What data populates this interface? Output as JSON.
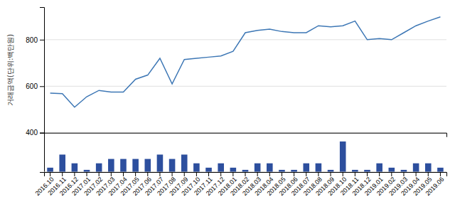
{
  "chart_data": [
    {
      "type": "line",
      "categories": [
        "2016.10",
        "2016.11",
        "2016.12",
        "2017.01",
        "2017.02",
        "2017.03",
        "2017.04",
        "2017.05",
        "2017.06",
        "2017.07",
        "2017.08",
        "2017.09",
        "2017.10",
        "2017.11",
        "2017.12",
        "2018.01",
        "2018.02",
        "2018.03",
        "2018.04",
        "2018.05",
        "2018.06",
        "2018.07",
        "2018.08",
        "2018.09",
        "2018.10",
        "2018.11",
        "2018.12",
        "2019.01",
        "2019.02",
        "2019.03",
        "2019.04",
        "2019.05",
        "2019.06"
      ],
      "values": [
        570,
        568,
        510,
        555,
        582,
        575,
        575,
        630,
        648,
        720,
        610,
        715,
        720,
        725,
        730,
        750,
        830,
        840,
        845,
        835,
        830,
        830,
        860,
        855,
        860,
        880,
        800,
        805,
        800,
        830,
        860,
        880,
        898
      ],
      "color": "#3d77b5",
      "ylabel": "거래금액(단위:백만원)",
      "ylim": [
        400,
        940
      ],
      "yticks": [
        400,
        600,
        800
      ],
      "grid": true,
      "tick_labels": "y"
    },
    {
      "type": "bar",
      "categories": [
        "2016.10",
        "2016.11",
        "2016.12",
        "2017.01",
        "2017.02",
        "2017.03",
        "2017.04",
        "2017.05",
        "2017.06",
        "2017.07",
        "2017.08",
        "2017.09",
        "2017.10",
        "2017.11",
        "2017.12",
        "2018.01",
        "2018.02",
        "2018.03",
        "2018.04",
        "2018.05",
        "2018.06",
        "2018.07",
        "2018.08",
        "2018.09",
        "2018.10",
        "2018.11",
        "2018.12",
        "2019.01",
        "2019.02",
        "2019.03",
        "2019.04",
        "2019.05",
        "2019.06"
      ],
      "values": [
        1,
        4,
        2,
        0.5,
        2,
        3,
        3,
        3,
        3,
        4,
        3,
        4,
        2,
        1,
        2,
        1,
        0.5,
        2,
        2,
        0.5,
        0.5,
        2,
        2,
        0.5,
        7,
        0.5,
        0.5,
        2,
        1,
        0.5,
        2,
        2,
        1
      ],
      "color": "#2d4f9e",
      "ylim": [
        0,
        9
      ],
      "tick_labels": "x"
    }
  ]
}
